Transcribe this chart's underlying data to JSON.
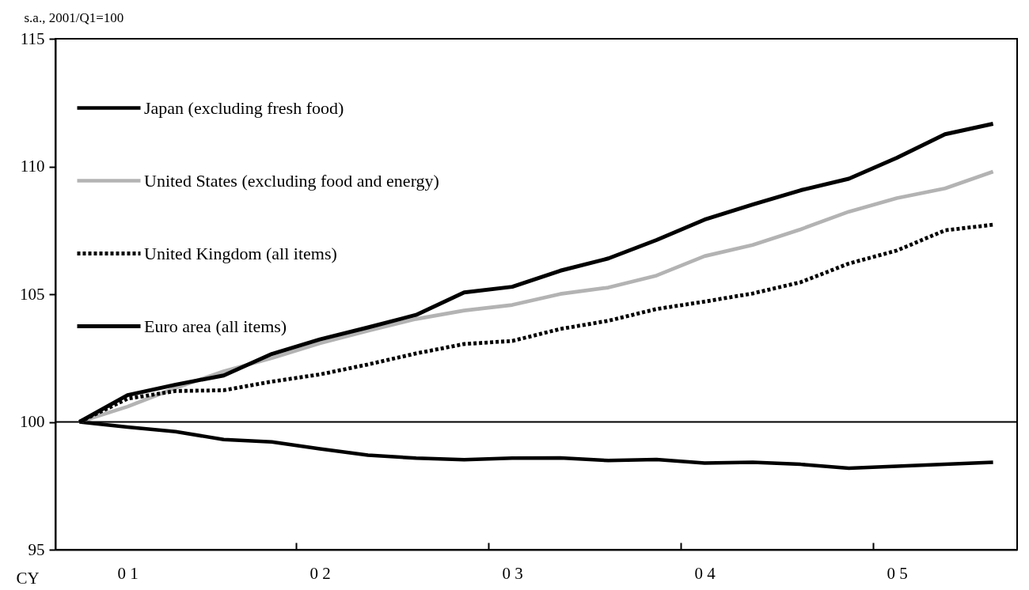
{
  "chart_data": {
    "type": "line",
    "ylabel": "s.a., 2001/Q1=100",
    "xlabel": "CY",
    "categories": [
      null,
      "0 1",
      null,
      null,
      null,
      "0 2",
      null,
      null,
      null,
      "0 3",
      null,
      null,
      null,
      "0 4",
      null,
      null,
      null,
      "0 5",
      null,
      null
    ],
    "ylim": [
      95,
      115
    ],
    "yticks": [
      95,
      100,
      105,
      110,
      115
    ],
    "grid": false,
    "legend": "top left",
    "marker": "none",
    "ref_lines": [
      {
        "axis": "y",
        "value": 100,
        "label": null,
        "color": "#000000"
      }
    ],
    "series": [
      {
        "name": "Japan (excluding fresh food)",
        "color": "#000000",
        "line_style": "solid",
        "values": [
          100,
          99.8,
          99.62,
          99.31,
          99.22,
          98.95,
          98.7,
          98.58,
          98.52,
          98.58,
          98.59,
          98.49,
          98.53,
          98.39,
          98.42,
          98.34,
          98.19,
          98.27,
          98.34,
          98.42
        ]
      },
      {
        "name": "United States (excluding food and energy)",
        "color": "#b3b3b3",
        "line_style": "solid",
        "values": [
          100,
          100.6,
          101.33,
          101.98,
          102.5,
          103.08,
          103.57,
          104.03,
          104.36,
          104.58,
          105.01,
          105.26,
          105.73,
          106.49,
          106.93,
          107.54,
          108.23,
          108.76,
          109.14,
          109.8
        ]
      },
      {
        "name": "United Kingdom (all items)",
        "color": "#000000",
        "line_style": "dashed",
        "values": [
          100,
          100.91,
          101.21,
          101.24,
          101.58,
          101.86,
          102.25,
          102.68,
          103.05,
          103.17,
          103.64,
          103.96,
          104.42,
          104.71,
          105.03,
          105.47,
          106.2,
          106.71,
          107.5,
          107.72
        ]
      },
      {
        "name": "Euro area (all items)",
        "color": "#000000",
        "line_style": "solid",
        "values": [
          100,
          101.05,
          101.46,
          101.82,
          102.66,
          103.23,
          103.7,
          104.19,
          105.07,
          105.29,
          105.92,
          106.4,
          107.12,
          107.92,
          108.51,
          109.07,
          109.52,
          110.34,
          111.26,
          111.67
        ]
      }
    ]
  }
}
